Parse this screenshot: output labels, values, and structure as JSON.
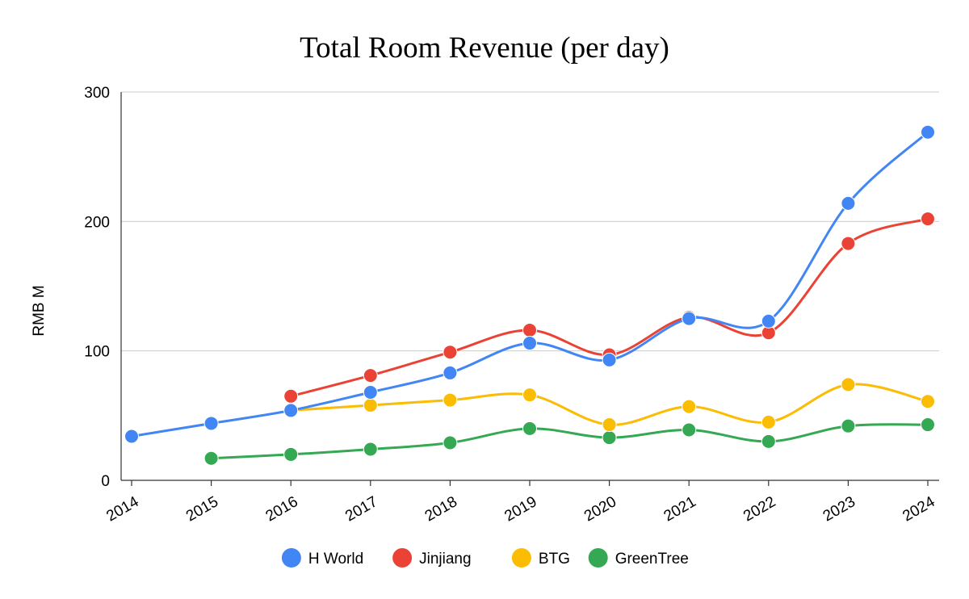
{
  "chart_data": {
    "type": "line",
    "title": "Total Room Revenue (per day)",
    "xlabel": "",
    "ylabel": "RMB M",
    "ylim": [
      0,
      300
    ],
    "yticks": [
      0,
      100,
      200,
      300
    ],
    "grid": true,
    "legend_position": "bottom",
    "categories": [
      "2014",
      "2015",
      "2016",
      "2017",
      "2018",
      "2019",
      "2020",
      "2021",
      "2022",
      "2023",
      "2024"
    ],
    "series": [
      {
        "name": "H World",
        "color": "#4285f4",
        "values": [
          34,
          44,
          54,
          68,
          83,
          106,
          93,
          125,
          123,
          214,
          269
        ]
      },
      {
        "name": "Jinjiang",
        "color": "#ea4335",
        "values": [
          null,
          null,
          65,
          81,
          99,
          116,
          97,
          126,
          114,
          183,
          202
        ]
      },
      {
        "name": "BTG",
        "color": "#fbbc04",
        "values": [
          null,
          null,
          54,
          58,
          62,
          66,
          43,
          57,
          45,
          74,
          61
        ]
      },
      {
        "name": "GreenTree",
        "color": "#34a853",
        "values": [
          null,
          17,
          20,
          24,
          29,
          40,
          33,
          39,
          30,
          42,
          43
        ]
      }
    ]
  }
}
